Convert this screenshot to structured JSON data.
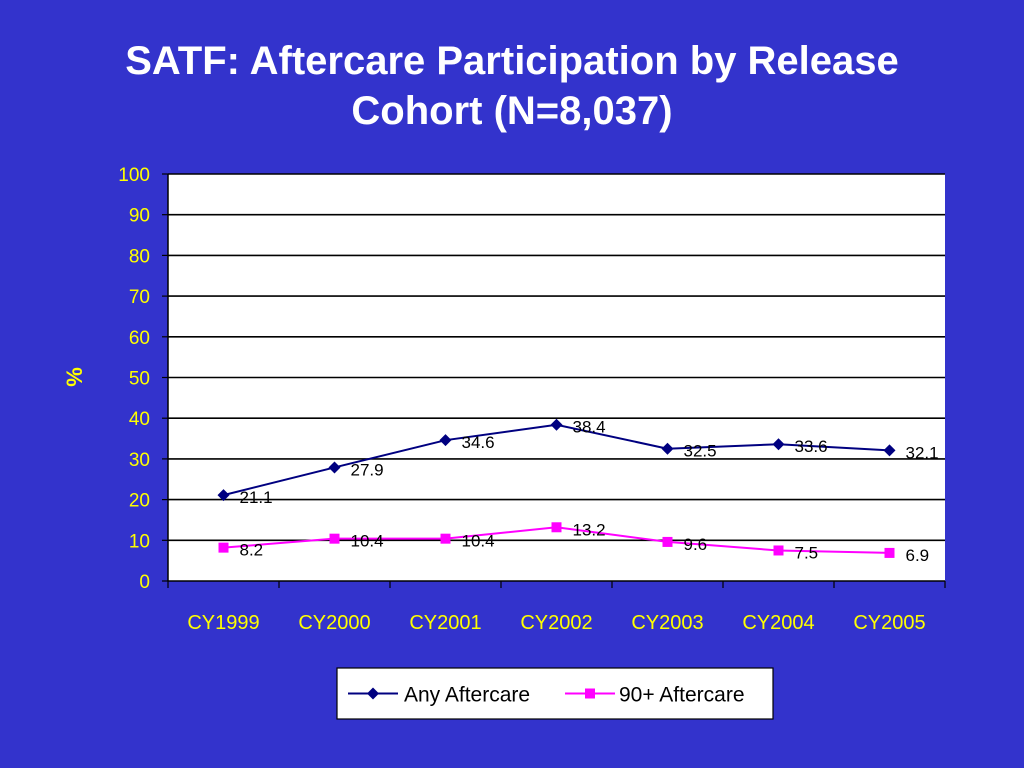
{
  "title": {
    "line1": "SATF: Aftercare Participation by Release",
    "line2": "Cohort (N=8,037)"
  },
  "chart_data": {
    "type": "line",
    "title": "SATF: Aftercare Participation by Release Cohort (N=8,037)",
    "xlabel": "",
    "ylabel": "%",
    "ylim": [
      0,
      100
    ],
    "y_ticks": [
      0,
      10,
      20,
      30,
      40,
      50,
      60,
      70,
      80,
      90,
      100
    ],
    "grid": true,
    "legend_position": "bottom",
    "categories": [
      "CY1999",
      "CY2000",
      "CY2001",
      "CY2002",
      "CY2003",
      "CY2004",
      "CY2005"
    ],
    "series": [
      {
        "name": "Any Aftercare",
        "values": [
          21.1,
          27.9,
          34.6,
          38.4,
          32.5,
          33.6,
          32.1
        ],
        "labels": [
          "21.1",
          "27.9",
          "34.6",
          "38.4",
          "32.5",
          "33.6",
          "32.1"
        ],
        "color": "#000080",
        "marker": "diamond"
      },
      {
        "name": "90+ Aftercare",
        "values": [
          8.2,
          10.4,
          10.4,
          13.2,
          9.6,
          7.5,
          6.9
        ],
        "labels": [
          "8.2",
          "10.4",
          "10.4",
          "13.2",
          "9.6",
          "7.5",
          "6.9"
        ],
        "color": "#ff00ff",
        "marker": "square"
      }
    ]
  },
  "colors": {
    "background": "#3333cc",
    "plot_area": "#ffffff",
    "axis_text": "#ffff00",
    "title_text": "#ffffff"
  }
}
